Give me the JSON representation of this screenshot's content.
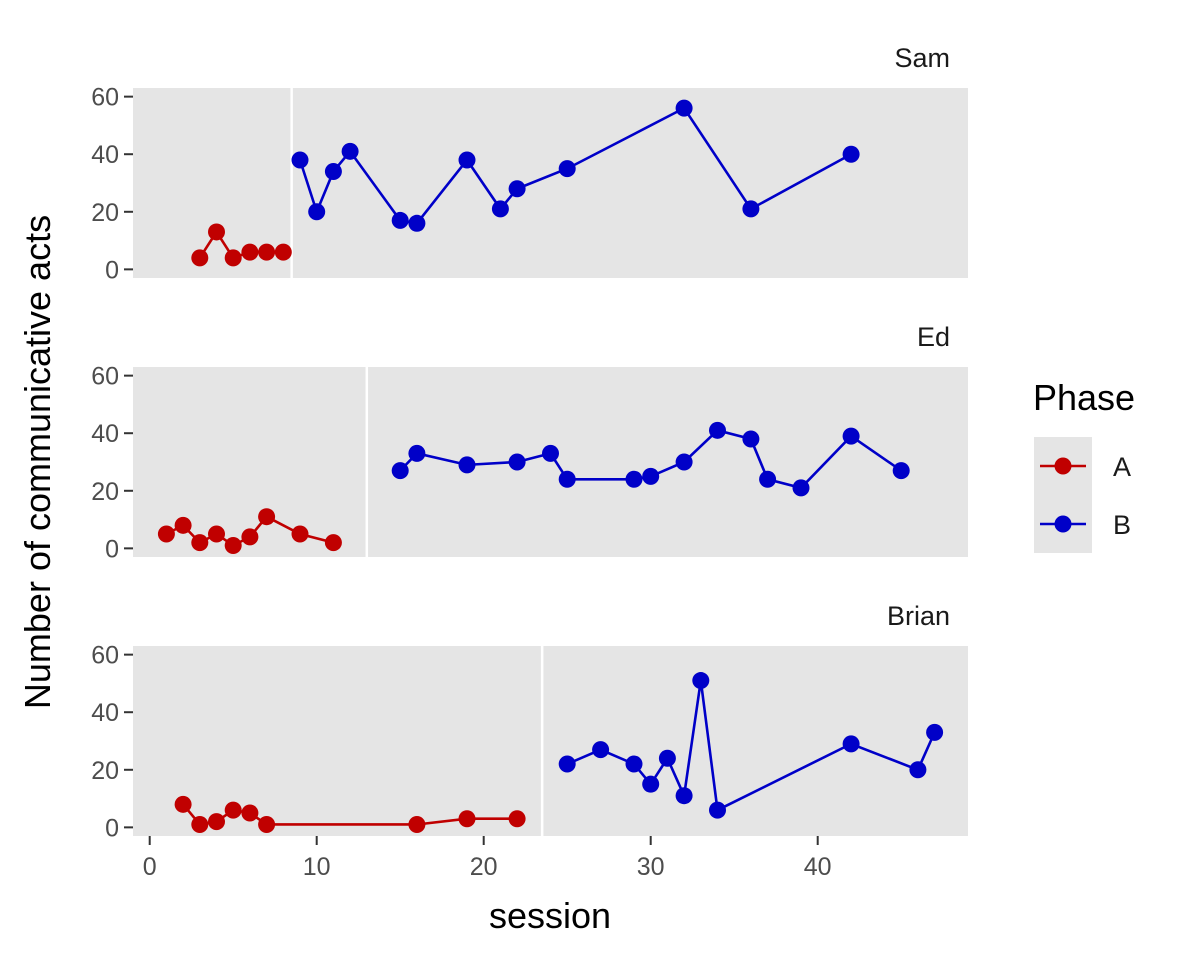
{
  "colors": {
    "panel_bg": "#e5e5e5",
    "grid": "#ffffff",
    "tick": "#333333",
    "phase_A": "#c00000",
    "phase_B": "#0000c8"
  },
  "chart_data": {
    "type": "line",
    "xlabel": "session",
    "ylabel": "Number of communicative acts",
    "xlim": [
      -1,
      49
    ],
    "ylim": [
      -3,
      63
    ],
    "x_ticks": [
      0,
      10,
      20,
      30,
      40
    ],
    "x_tick_labels": [
      "0",
      "10",
      "20",
      "30",
      "40"
    ],
    "y_ticks": [
      0,
      20,
      40,
      60
    ],
    "y_tick_labels": [
      "0",
      "20",
      "40",
      "60"
    ],
    "grid": false,
    "legend": {
      "title": "Phase",
      "position": "right",
      "entries": [
        {
          "label": "A",
          "color": "#c00000"
        },
        {
          "label": "B",
          "color": "#0000c8"
        }
      ]
    },
    "panels": [
      {
        "strip": "Sam",
        "phase_change": 8.5,
        "series": [
          {
            "phase": "A",
            "x": [
              3,
              4,
              5,
              6,
              7,
              8
            ],
            "y": [
              4,
              13,
              4,
              6,
              6,
              6
            ]
          },
          {
            "phase": "B",
            "x": [
              9,
              10,
              11,
              12,
              15,
              16,
              19,
              21,
              22,
              25,
              32,
              36,
              42
            ],
            "y": [
              38,
              20,
              34,
              41,
              17,
              16,
              38,
              21,
              28,
              35,
              56,
              21,
              40
            ]
          }
        ]
      },
      {
        "strip": "Ed",
        "phase_change": 13,
        "series": [
          {
            "phase": "A",
            "x": [
              1,
              2,
              3,
              4,
              5,
              6,
              7,
              9,
              11
            ],
            "y": [
              5,
              8,
              2,
              5,
              1,
              4,
              11,
              5,
              2
            ]
          },
          {
            "phase": "B",
            "x": [
              15,
              16,
              19,
              22,
              24,
              25,
              29,
              30,
              32,
              34,
              36,
              37,
              39,
              42,
              45
            ],
            "y": [
              27,
              33,
              29,
              30,
              33,
              24,
              24,
              25,
              30,
              41,
              38,
              24,
              21,
              39,
              27
            ]
          }
        ]
      },
      {
        "strip": "Brian",
        "phase_change": 23.5,
        "series": [
          {
            "phase": "A",
            "x": [
              2,
              3,
              4,
              5,
              6,
              7,
              16,
              19,
              22
            ],
            "y": [
              8,
              1,
              2,
              6,
              5,
              1,
              1,
              3,
              3
            ]
          },
          {
            "phase": "B",
            "x": [
              25,
              27,
              29,
              30,
              31,
              32,
              33,
              34,
              42,
              46,
              47
            ],
            "y": [
              22,
              27,
              22,
              15,
              24,
              11,
              51,
              6,
              29,
              20,
              33
            ]
          }
        ]
      }
    ]
  }
}
